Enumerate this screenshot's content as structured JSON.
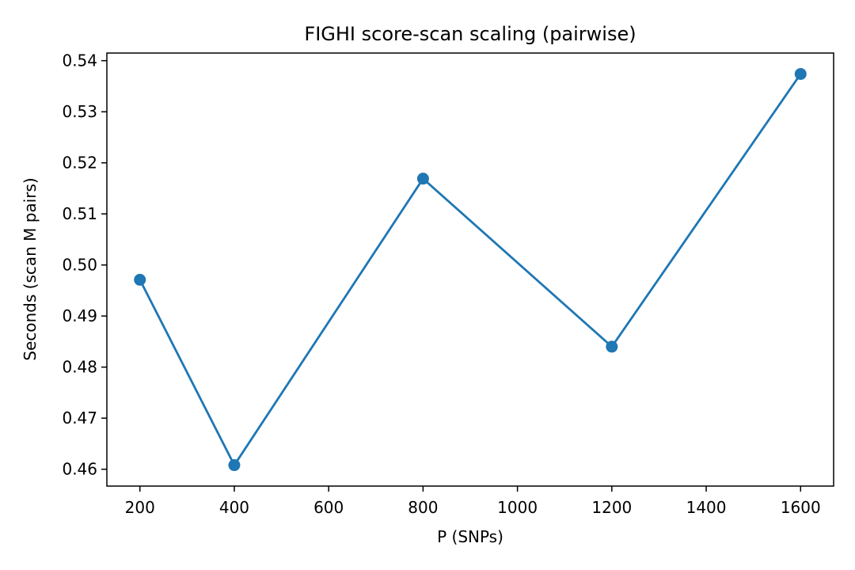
{
  "chart_data": {
    "type": "line",
    "title": "FIGHI score-scan scaling (pairwise)",
    "xlabel": "P (SNPs)",
    "ylabel": "Seconds (scan M pairs)",
    "x": [
      200,
      400,
      800,
      1200,
      1600
    ],
    "series": [
      {
        "values": [
          0.4971,
          0.4608,
          0.5169,
          0.484,
          0.5374
        ],
        "color": "#1f77b4",
        "marker": "circle"
      }
    ],
    "xlim": [
      130,
      1670
    ],
    "ylim": [
      0.4567,
      0.5415
    ],
    "xticks": [
      200,
      400,
      600,
      800,
      1000,
      1200,
      1400,
      1600
    ],
    "yticks": [
      0.46,
      0.47,
      0.48,
      0.49,
      0.5,
      0.51,
      0.52,
      0.53,
      0.54
    ],
    "ytick_labels": [
      "0.46",
      "0.47",
      "0.48",
      "0.49",
      "0.50",
      "0.51",
      "0.52",
      "0.53",
      "0.54"
    ],
    "grid": false,
    "legend": "none"
  }
}
